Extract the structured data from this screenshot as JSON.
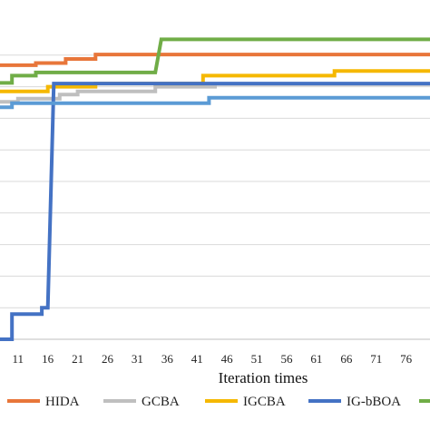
{
  "chart_data": {
    "type": "line",
    "xlabel": "Iteration times",
    "ylabel": "",
    "title": "",
    "x_ticks": [
      11,
      16,
      21,
      26,
      31,
      36,
      41,
      46,
      51,
      56,
      61,
      66,
      71,
      76
    ],
    "xlim": [
      8,
      80
    ],
    "ylim": [
      0,
      10
    ],
    "y_gridlines": [
      1,
      2,
      3,
      4,
      5,
      6,
      7,
      8,
      9
    ],
    "grid": "horizontal",
    "legend_position": "bottom",
    "series": [
      {
        "name": "HIDA",
        "color": "#e8763a",
        "points": [
          [
            8,
            8.68
          ],
          [
            14,
            8.68
          ],
          [
            14,
            8.75
          ],
          [
            19,
            8.75
          ],
          [
            19,
            8.88
          ],
          [
            24,
            8.88
          ],
          [
            24,
            9.02
          ],
          [
            80,
            9.02
          ]
        ]
      },
      {
        "name": "GCBA",
        "color": "#bfbfbf",
        "points": [
          [
            8,
            7.52
          ],
          [
            11,
            7.52
          ],
          [
            11,
            7.62
          ],
          [
            18,
            7.62
          ],
          [
            18,
            7.75
          ],
          [
            21,
            7.75
          ],
          [
            21,
            7.85
          ],
          [
            34,
            7.85
          ],
          [
            34,
            8.0
          ],
          [
            44,
            8.0
          ],
          [
            44,
            8.08
          ],
          [
            80,
            8.08
          ]
        ]
      },
      {
        "name": "IGCBA",
        "color": "#f5b800",
        "points": [
          [
            8,
            7.85
          ],
          [
            16,
            7.85
          ],
          [
            16,
            8.0
          ],
          [
            24,
            8.0
          ],
          [
            24,
            8.1
          ],
          [
            42,
            8.1
          ],
          [
            42,
            8.35
          ],
          [
            64,
            8.35
          ],
          [
            64,
            8.5
          ],
          [
            80,
            8.5
          ]
        ]
      },
      {
        "name": "IG-bBOA",
        "color": "#4472c4",
        "points": [
          [
            8,
            0.0
          ],
          [
            10,
            0.0
          ],
          [
            10,
            0.8
          ],
          [
            15,
            0.8
          ],
          [
            15,
            1.0
          ],
          [
            16,
            1.0
          ],
          [
            17,
            8.1
          ],
          [
            80,
            8.1
          ]
        ]
      },
      {
        "name": "",
        "color": "#70ad47",
        "points": [
          [
            8,
            8.12
          ],
          [
            10,
            8.12
          ],
          [
            10,
            8.35
          ],
          [
            14,
            8.35
          ],
          [
            14,
            8.45
          ],
          [
            34,
            8.45
          ],
          [
            35,
            9.5
          ],
          [
            80,
            9.5
          ]
        ]
      },
      {
        "name": "",
        "color": "#5b9bd5",
        "points": [
          [
            8,
            7.35
          ],
          [
            10,
            7.35
          ],
          [
            10,
            7.48
          ],
          [
            43,
            7.48
          ],
          [
            43,
            7.65
          ],
          [
            80,
            7.65
          ]
        ]
      }
    ]
  }
}
